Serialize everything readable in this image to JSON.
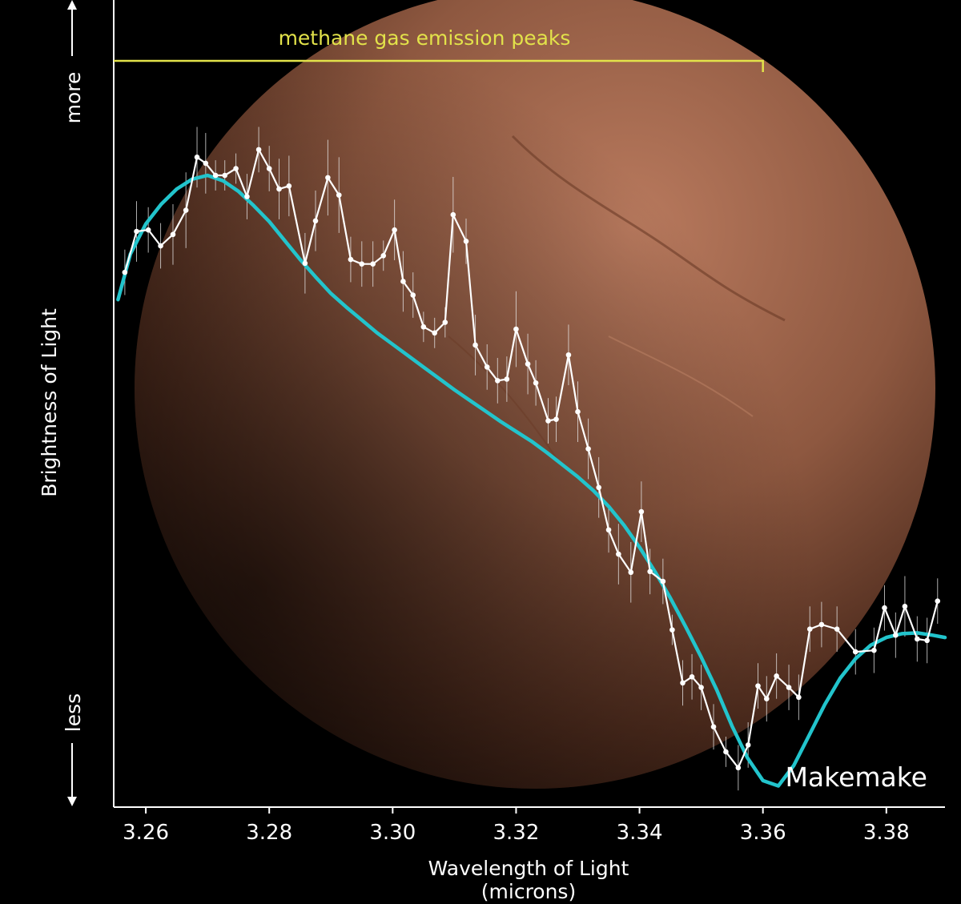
{
  "chart_data": {
    "type": "line",
    "title": "",
    "xlabel": "Wavelength of Light",
    "xlabel_unit": "(microns)",
    "ylabel": "Brightness of Light",
    "y_more_label": "more",
    "y_less_label": "less",
    "annotation": "methane gas emission peaks",
    "target_label": "Makemake",
    "xlim": [
      3.2548,
      3.3895
    ],
    "ylim": [
      0,
      1
    ],
    "x_ticks": [
      "3.26",
      "3.28",
      "3.30",
      "3.32",
      "3.34",
      "3.36",
      "3.38"
    ],
    "x_tick_values": [
      3.26,
      3.28,
      3.3,
      3.32,
      3.34,
      3.36,
      3.38
    ],
    "grid": false,
    "annotation_span": [
      3.2548,
      3.36
    ],
    "colors": {
      "background": "#000000",
      "observed": "#ffffff",
      "model": "#22c4cc",
      "annotation": "#e2e24a",
      "planet_light": "#b97a5e",
      "planet_dark": "#3a1f14"
    },
    "series": [
      {
        "kind": "observed",
        "x": [
          3.2566,
          3.2585,
          3.2604,
          3.2624,
          3.2644,
          3.2665,
          3.2683,
          3.2697,
          3.2713,
          3.2728,
          3.2746,
          3.2764,
          3.2783,
          3.28,
          3.2816,
          3.2832,
          3.2858,
          3.2875,
          3.2895,
          3.2913,
          3.2932,
          3.295,
          3.2968,
          3.2985,
          3.3003,
          3.3017,
          3.3033,
          3.305,
          3.3068,
          3.3085,
          3.3098,
          3.3119,
          3.3134,
          3.3153,
          3.317,
          3.3185,
          3.32,
          3.3219,
          3.3232,
          3.3252,
          3.3265,
          3.3285,
          3.33,
          3.3317,
          3.3334,
          3.335,
          3.3366,
          3.3386,
          3.3403,
          3.3417,
          3.3438,
          3.3453,
          3.347,
          3.3485,
          3.35,
          3.352,
          3.354,
          3.356,
          3.3576,
          3.3592,
          3.3606,
          3.3622,
          3.3642,
          3.3658,
          3.3676,
          3.3695,
          3.372,
          3.375,
          3.378,
          3.3797,
          3.3815,
          3.383,
          3.385,
          3.3866,
          3.3883
        ],
        "y": [
          0.706,
          0.76,
          0.762,
          0.741,
          0.756,
          0.788,
          0.858,
          0.85,
          0.834,
          0.834,
          0.843,
          0.806,
          0.868,
          0.843,
          0.816,
          0.82,
          0.718,
          0.774,
          0.831,
          0.808,
          0.723,
          0.717,
          0.717,
          0.728,
          0.762,
          0.694,
          0.676,
          0.634,
          0.626,
          0.64,
          0.782,
          0.747,
          0.61,
          0.581,
          0.563,
          0.565,
          0.631,
          0.585,
          0.56,
          0.51,
          0.512,
          0.597,
          0.522,
          0.473,
          0.422,
          0.366,
          0.334,
          0.31,
          0.39,
          0.311,
          0.298,
          0.234,
          0.164,
          0.172,
          0.158,
          0.106,
          0.073,
          0.052,
          0.082,
          0.16,
          0.143,
          0.173,
          0.158,
          0.145,
          0.235,
          0.241,
          0.235,
          0.205,
          0.207,
          0.263,
          0.227,
          0.265,
          0.222,
          0.22,
          0.272
        ],
        "err": [
          0.03,
          0.04,
          0.03,
          0.03,
          0.04,
          0.05,
          0.04,
          0.04,
          0.02,
          0.02,
          0.02,
          0.03,
          0.03,
          0.03,
          0.04,
          0.04,
          0.04,
          0.04,
          0.05,
          0.05,
          0.03,
          0.03,
          0.03,
          0.02,
          0.04,
          0.04,
          0.03,
          0.02,
          0.02,
          0.02,
          0.05,
          0.03,
          0.04,
          0.03,
          0.03,
          0.03,
          0.05,
          0.04,
          0.03,
          0.03,
          0.03,
          0.04,
          0.04,
          0.04,
          0.04,
          0.03,
          0.04,
          0.04,
          0.04,
          0.03,
          0.03,
          0.02,
          0.03,
          0.03,
          0.03,
          0.03,
          0.02,
          0.03,
          0.03,
          0.03,
          0.03,
          0.03,
          0.03,
          0.03,
          0.03,
          0.03,
          0.03,
          0.03,
          0.03,
          0.03,
          0.03,
          0.04,
          0.03,
          0.03,
          0.03
        ]
      },
      {
        "kind": "model",
        "x": [
          3.2555,
          3.2575,
          3.26,
          3.2625,
          3.265,
          3.2675,
          3.27,
          3.2725,
          3.275,
          3.2775,
          3.28,
          3.2825,
          3.285,
          3.2875,
          3.29,
          3.2925,
          3.295,
          3.2975,
          3.3,
          3.3025,
          3.305,
          3.3075,
          3.31,
          3.3125,
          3.315,
          3.3175,
          3.32,
          3.3225,
          3.325,
          3.3275,
          3.33,
          3.3325,
          3.335,
          3.3375,
          3.34,
          3.3425,
          3.345,
          3.3475,
          3.35,
          3.3525,
          3.355,
          3.3575,
          3.36,
          3.3625,
          3.365,
          3.3675,
          3.37,
          3.3725,
          3.375,
          3.3775,
          3.38,
          3.3825,
          3.385,
          3.3875,
          3.3895
        ],
        "y": [
          0.67,
          0.73,
          0.77,
          0.796,
          0.816,
          0.829,
          0.834,
          0.827,
          0.813,
          0.794,
          0.773,
          0.748,
          0.723,
          0.7,
          0.678,
          0.66,
          0.643,
          0.626,
          0.611,
          0.596,
          0.581,
          0.566,
          0.551,
          0.537,
          0.523,
          0.509,
          0.496,
          0.483,
          0.468,
          0.452,
          0.436,
          0.418,
          0.397,
          0.372,
          0.343,
          0.311,
          0.276,
          0.238,
          0.198,
          0.155,
          0.107,
          0.065,
          0.035,
          0.028,
          0.055,
          0.095,
          0.135,
          0.17,
          0.196,
          0.214,
          0.224,
          0.229,
          0.23,
          0.227,
          0.224
        ]
      }
    ]
  }
}
